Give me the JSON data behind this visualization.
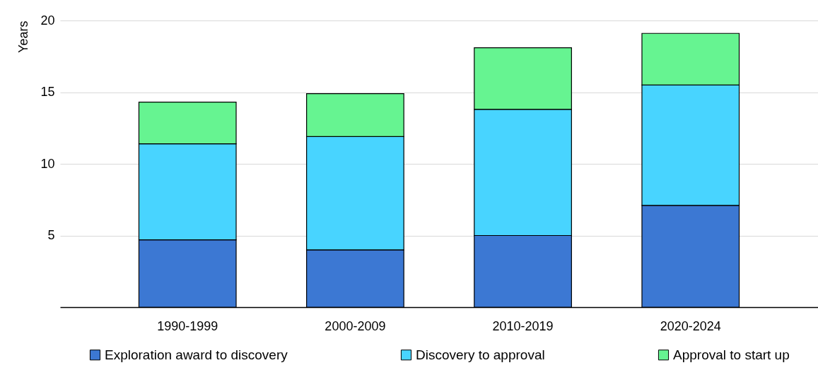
{
  "chart_data": {
    "type": "bar",
    "stacked": true,
    "ylabel": "Years",
    "categories": [
      "1990-1999",
      "2000-2009",
      "2010-2019",
      "2020-2024"
    ],
    "series": [
      {
        "name": "Exploration award to discovery",
        "color": "#3c78d3",
        "values": [
          4.7,
          4.0,
          5.0,
          7.1
        ]
      },
      {
        "name": "Discovery to approval",
        "color": "#48d4ff",
        "values": [
          6.7,
          7.9,
          8.8,
          8.4
        ]
      },
      {
        "name": "Approval to start up",
        "color": "#66f491",
        "values": [
          2.9,
          3.0,
          4.3,
          3.6
        ]
      }
    ],
    "ylim": [
      0,
      20
    ],
    "yticks": [
      5,
      10,
      15,
      20
    ],
    "grid": "y",
    "legend": "bottom"
  }
}
